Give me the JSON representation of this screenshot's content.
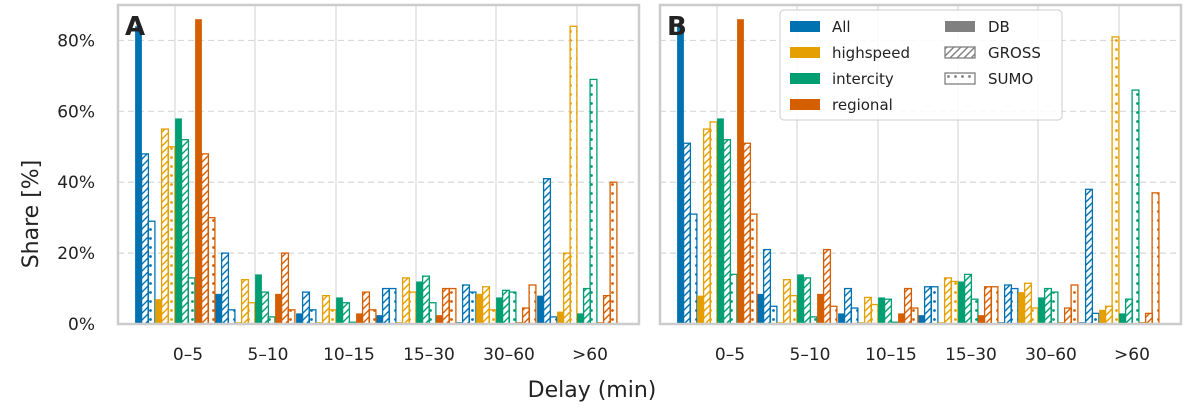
{
  "figure": {
    "ylabel": "Share [%]",
    "xlabel": "Delay (min)"
  },
  "colors": {
    "All": "#0072b2",
    "highspeed": "#e69f00",
    "intercity": "#009e73",
    "regional": "#d55e00",
    "grid": "#d9d9d9",
    "frame": "#cccccc",
    "legend_gray": "#808080"
  },
  "chart_data": [
    {
      "panel": "A",
      "type": "bar",
      "categories": [
        "0–5",
        "5–10",
        "10–15",
        "15–30",
        "30–60",
        ">60"
      ],
      "ylim": [
        0,
        90
      ],
      "yticks": [
        0,
        20,
        40,
        60,
        80
      ],
      "ytick_labels": [
        "0%",
        "20%",
        "40%",
        "60%",
        "80%"
      ],
      "grid": true,
      "series": [
        {
          "group": "All",
          "source": "DB",
          "values": [
            84,
            8.5,
            3,
            2.5,
            0.5,
            8
          ]
        },
        {
          "group": "All",
          "source": "GROSS",
          "values": [
            48,
            20,
            9,
            10,
            11,
            41
          ]
        },
        {
          "group": "All",
          "source": "SUMO",
          "values": [
            29,
            4,
            4,
            10,
            9,
            2
          ]
        },
        {
          "group": "highspeed",
          "source": "DB",
          "values": [
            7,
            0.5,
            0.5,
            0.5,
            8.5,
            3.5
          ]
        },
        {
          "group": "highspeed",
          "source": "GROSS",
          "values": [
            55,
            12.5,
            8,
            13,
            10.5,
            20
          ]
        },
        {
          "group": "highspeed",
          "source": "SUMO",
          "values": [
            50,
            6,
            4,
            9,
            4,
            84
          ]
        },
        {
          "group": "intercity",
          "source": "DB",
          "values": [
            58,
            14,
            7.5,
            12,
            7.5,
            3
          ]
        },
        {
          "group": "intercity",
          "source": "GROSS",
          "values": [
            52,
            9,
            6,
            13.5,
            9.5,
            10
          ]
        },
        {
          "group": "intercity",
          "source": "SUMO",
          "values": [
            13,
            2,
            0.5,
            6,
            9,
            69
          ]
        },
        {
          "group": "regional",
          "source": "DB",
          "values": [
            86,
            8.5,
            3,
            2.5,
            0.5,
            0.5
          ]
        },
        {
          "group": "regional",
          "source": "GROSS",
          "values": [
            48,
            20,
            9,
            10,
            4.5,
            8
          ]
        },
        {
          "group": "regional",
          "source": "SUMO",
          "values": [
            30,
            4,
            4,
            10,
            11,
            40
          ]
        }
      ]
    },
    {
      "panel": "B",
      "type": "bar",
      "categories": [
        "0–5",
        "5–10",
        "10–15",
        "15–30",
        "30–60",
        ">60"
      ],
      "ylim": [
        0,
        90
      ],
      "yticks": [
        0,
        20,
        40,
        60,
        80
      ],
      "ytick_labels": [
        "0%",
        "20%",
        "40%",
        "60%",
        "80%"
      ],
      "grid": true,
      "series": [
        {
          "group": "All",
          "source": "DB",
          "values": [
            84,
            8.5,
            3,
            2.5,
            0.5,
            0.5
          ]
        },
        {
          "group": "All",
          "source": "GROSS",
          "values": [
            51,
            21,
            10,
            10.5,
            11,
            38
          ]
        },
        {
          "group": "All",
          "source": "SUMO",
          "values": [
            31,
            5,
            4.5,
            10.5,
            10,
            3
          ]
        },
        {
          "group": "highspeed",
          "source": "DB",
          "values": [
            8,
            0.5,
            0.5,
            0.5,
            9,
            4
          ]
        },
        {
          "group": "highspeed",
          "source": "GROSS",
          "values": [
            55,
            12.5,
            7.5,
            13,
            11.5,
            5
          ]
        },
        {
          "group": "highspeed",
          "source": "SUMO",
          "values": [
            57,
            8,
            5.5,
            12,
            4.5,
            81
          ]
        },
        {
          "group": "intercity",
          "source": "DB",
          "values": [
            58,
            14,
            7.5,
            12,
            7.5,
            3
          ]
        },
        {
          "group": "intercity",
          "source": "GROSS",
          "values": [
            52,
            13,
            7,
            14,
            10,
            7
          ]
        },
        {
          "group": "intercity",
          "source": "SUMO",
          "values": [
            14,
            2,
            0.5,
            7,
            9,
            66
          ]
        },
        {
          "group": "regional",
          "source": "DB",
          "values": [
            86,
            8.5,
            3,
            2.5,
            0.5,
            0.5
          ]
        },
        {
          "group": "regional",
          "source": "GROSS",
          "values": [
            51,
            21,
            10,
            10.5,
            4.5,
            3
          ]
        },
        {
          "group": "regional",
          "source": "SUMO",
          "values": [
            31,
            5,
            4.5,
            10.5,
            11,
            37
          ]
        }
      ]
    }
  ],
  "legend": {
    "placement": "top-right of panel B",
    "groups": [
      "All",
      "highspeed",
      "intercity",
      "regional"
    ],
    "sources": [
      {
        "label": "DB",
        "style": "solid"
      },
      {
        "label": "GROSS",
        "style": "hatch"
      },
      {
        "label": "SUMO",
        "style": "dots"
      }
    ]
  }
}
